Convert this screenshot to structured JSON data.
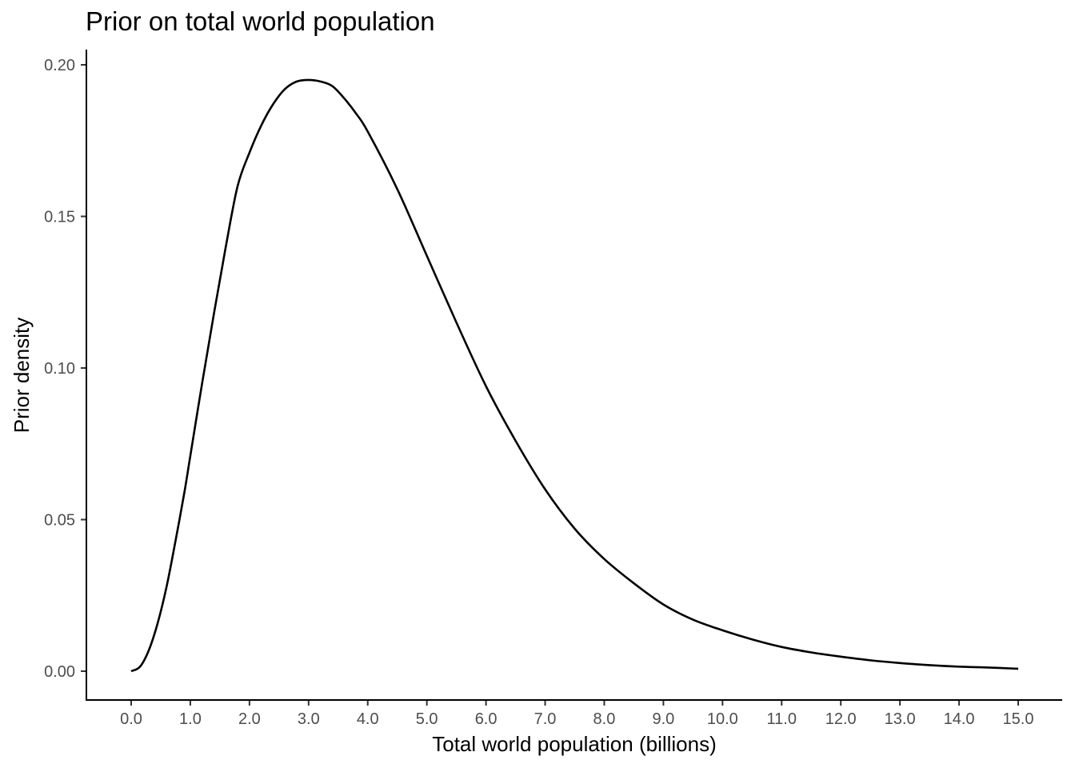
{
  "chart_data": {
    "type": "line",
    "title": "Prior on total world population",
    "xlabel": "Total world population (billions)",
    "ylabel": "Prior density",
    "xlim": [
      0,
      15
    ],
    "ylim": [
      0,
      0.2
    ],
    "x_ticks": [
      "0.0",
      "1.0",
      "2.0",
      "3.0",
      "4.0",
      "5.0",
      "6.0",
      "7.0",
      "8.0",
      "9.0",
      "10.0",
      "11.0",
      "12.0",
      "13.0",
      "14.0",
      "15.0"
    ],
    "y_ticks": [
      "0.00",
      "0.05",
      "0.10",
      "0.15",
      "0.20"
    ],
    "grid": false,
    "legend": "none",
    "series": [
      {
        "color": "#000000",
        "x": [
          0.0,
          0.15,
          0.3,
          0.45,
          0.6,
          0.75,
          0.9,
          1.0,
          1.2,
          1.4,
          1.6,
          1.8,
          2.0,
          2.2,
          2.4,
          2.6,
          2.8,
          3.0,
          3.2,
          3.4,
          3.6,
          3.8,
          4.0,
          4.5,
          5.0,
          5.5,
          6.0,
          6.5,
          7.0,
          7.5,
          8.0,
          8.5,
          9.0,
          9.5,
          10.0,
          10.5,
          11.0,
          11.5,
          12.0,
          12.5,
          13.0,
          13.5,
          14.0,
          14.5,
          15.0
        ],
        "y": [
          0.0,
          0.0015,
          0.007,
          0.016,
          0.028,
          0.043,
          0.059,
          0.071,
          0.095,
          0.118,
          0.14,
          0.16,
          0.171,
          0.18,
          0.187,
          0.192,
          0.1945,
          0.195,
          0.1945,
          0.193,
          0.189,
          0.184,
          0.178,
          0.159,
          0.137,
          0.115,
          0.094,
          0.076,
          0.06,
          0.047,
          0.037,
          0.029,
          0.022,
          0.017,
          0.0135,
          0.0105,
          0.008,
          0.0062,
          0.0048,
          0.0036,
          0.0027,
          0.002,
          0.0015,
          0.0012,
          0.0008
        ]
      }
    ]
  }
}
